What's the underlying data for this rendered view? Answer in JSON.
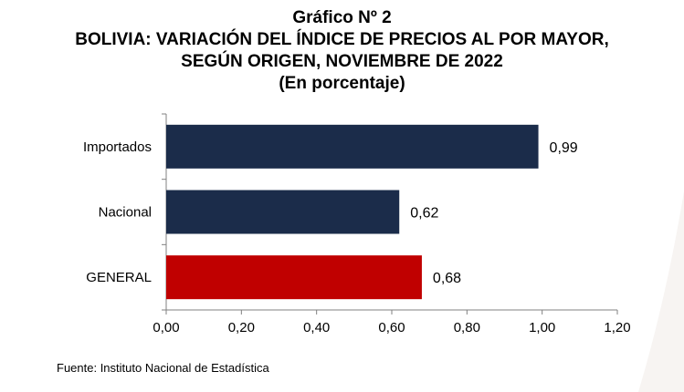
{
  "title_lines": [
    "Gráfico Nº 2",
    "BOLIVIA: VARIACIÓN DEL ÍNDICE DE PRECIOS AL POR MAYOR,",
    "SEGÚN ORIGEN, NOVIEMBRE DE 2022",
    "(En porcentaje)"
  ],
  "source": "Fuente: Instituto Nacional de Estadística",
  "colors": {
    "dark": "#1b2c4a",
    "accent": "#c00000"
  },
  "chart_data": {
    "type": "bar",
    "orientation": "horizontal",
    "categories": [
      "Importados",
      "Nacional",
      "GENERAL"
    ],
    "values": [
      0.99,
      0.62,
      0.68
    ],
    "value_labels": [
      "0,99",
      "0,62",
      "0,68"
    ],
    "xlim": [
      0,
      1.2
    ],
    "xticks": [
      0,
      0.2,
      0.4,
      0.6,
      0.8,
      1.0,
      1.2
    ],
    "xtick_labels": [
      "0,00",
      "0,20",
      "0,40",
      "0,60",
      "0,80",
      "1,00",
      "1,20"
    ],
    "bar_colors": [
      "#1b2c4a",
      "#1b2c4a",
      "#c00000"
    ],
    "grid": false,
    "legend": "none"
  }
}
